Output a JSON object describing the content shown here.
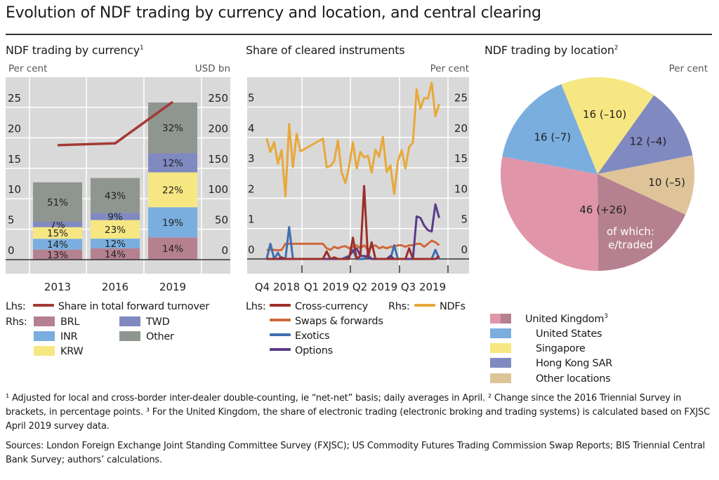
{
  "title": "Evolution of NDF trading by currency and location, and central clearing",
  "chart_data": [
    {
      "type": "bar",
      "stacked": true,
      "title": "NDF trading by currency",
      "title_footnote": "1",
      "ylabel_left": "Per cent",
      "ylabel_right": "USD bn",
      "ylim_left": [
        0,
        25
      ],
      "ylim_right": [
        0,
        250
      ],
      "yticks_left": [
        "0",
        "5",
        "10",
        "15",
        "20",
        "25"
      ],
      "yticks_right": [
        "0",
        "50",
        "100",
        "150",
        "200",
        "250"
      ],
      "grid": true,
      "categories": [
        "2013",
        "2016",
        "2019"
      ],
      "totals_usd_bn": [
        127,
        134,
        258
      ],
      "series": [
        {
          "name": "BRL",
          "axis": "right",
          "color": "#b5808f",
          "shares_pct": [
            13,
            14,
            14
          ],
          "labels": [
            "13%",
            "14%",
            "14%"
          ]
        },
        {
          "name": "INR",
          "axis": "right",
          "color": "#7aaedf",
          "shares_pct": [
            14,
            12,
            19
          ],
          "labels": [
            "14%",
            "12%",
            "19%"
          ]
        },
        {
          "name": "KRW",
          "axis": "right",
          "color": "#f7e783",
          "shares_pct": [
            15,
            23,
            22
          ],
          "labels": [
            "15%",
            "23%",
            "22%"
          ]
        },
        {
          "name": "TWD",
          "axis": "right",
          "color": "#8089c0",
          "shares_pct": [
            7,
            9,
            12
          ],
          "labels": [
            "7%",
            "9%",
            "12%"
          ]
        },
        {
          "name": "Other",
          "axis": "right",
          "color": "#8f958f",
          "shares_pct": [
            51,
            43,
            32
          ],
          "labels": [
            "51%",
            "43%",
            "32%"
          ]
        }
      ],
      "line": {
        "name": "Share in total forward turnover",
        "axis": "left",
        "color": "#a33a36",
        "values": [
          18.8,
          19.1,
          25.9
        ]
      },
      "legend": {
        "lhs_prefix": "Lhs:",
        "rhs_prefix": "Rhs:"
      }
    },
    {
      "type": "line",
      "title": "Share of cleared instruments",
      "ylabel_right": "Per cent",
      "ylim_left": [
        -0.5,
        6
      ],
      "ylim_right": [
        -2.5,
        30
      ],
      "yticks_left": [
        "0",
        "1",
        "2",
        "3",
        "4",
        "5"
      ],
      "yticks_right": [
        "0",
        "5",
        "10",
        "15",
        "20",
        "25"
      ],
      "grid": true,
      "xticks": [
        "Q4 2018",
        "Q1 2019",
        "Q2 2019",
        "Q3 2019"
      ],
      "x": [
        "2018-10-26",
        "2018-11-02",
        "2018-11-09",
        "2018-11-16",
        "2018-11-23",
        "2018-11-30",
        "2018-12-07",
        "2018-12-14",
        "2018-12-21",
        "2018-12-28",
        "2019-02-08",
        "2019-02-15",
        "2019-02-22",
        "2019-03-01",
        "2019-03-08",
        "2019-03-15",
        "2019-03-22",
        "2019-03-29",
        "2019-04-05",
        "2019-04-12",
        "2019-04-19",
        "2019-04-26",
        "2019-05-03",
        "2019-05-10",
        "2019-05-17",
        "2019-05-24",
        "2019-05-31",
        "2019-06-07",
        "2019-06-14",
        "2019-06-21",
        "2019-06-28",
        "2019-07-05",
        "2019-07-12",
        "2019-07-19",
        "2019-07-26",
        "2019-08-02",
        "2019-08-09",
        "2019-08-16",
        "2019-08-23",
        "2019-08-30",
        "2019-09-06",
        "2019-09-13"
      ],
      "series": [
        {
          "name": "Cross-currency",
          "axis": "left",
          "color": "#9c2f2a",
          "values": [
            0,
            0,
            0,
            0,
            0.05,
            0,
            0,
            0,
            0,
            0,
            0,
            0.25,
            0,
            0.05,
            0,
            0,
            0,
            0,
            0.7,
            0,
            0.1,
            2.4,
            0.05,
            0.55,
            0,
            0,
            0,
            0,
            0,
            0,
            0,
            0,
            0,
            0.35,
            0,
            0,
            0,
            0,
            0,
            0,
            0,
            0.1
          ]
        },
        {
          "name": "Swaps & forwards",
          "axis": "left",
          "color": "#d0683a",
          "values": [
            0.3,
            0.3,
            0.3,
            0.28,
            0.3,
            0.5,
            0.5,
            0.5,
            0.5,
            0.5,
            0.5,
            0.35,
            0.3,
            0.4,
            0.35,
            0.4,
            0.42,
            0.35,
            0.4,
            0.45,
            0.35,
            0.45,
            0.3,
            0.4,
            0.45,
            0.35,
            0.4,
            0.35,
            0.4,
            0.4,
            0.45,
            0.45,
            0.4,
            0.45,
            0.45,
            0.5,
            0.5,
            0.4,
            0.5,
            0.6,
            0.55,
            0.45
          ]
        },
        {
          "name": "Exotics",
          "axis": "left",
          "color": "#3f6fb0",
          "values": [
            0,
            0.5,
            0,
            0.2,
            0,
            0,
            1.05,
            0,
            0,
            0,
            0,
            0,
            0,
            0,
            0,
            0,
            0.05,
            0.1,
            0.3,
            0,
            0,
            0,
            0.15,
            0,
            0,
            0,
            0,
            0,
            0,
            0.45,
            0,
            0,
            0,
            0,
            0,
            0,
            0,
            0,
            0,
            0,
            0.3,
            0
          ]
        },
        {
          "name": "Options",
          "axis": "left",
          "color": "#5b3a8c",
          "values": [
            0,
            0,
            0,
            0,
            0,
            0,
            0,
            0,
            0,
            0,
            0,
            0,
            0,
            0,
            0,
            0,
            0,
            0.1,
            0.25,
            0.35,
            0.1,
            0.1,
            0.05,
            0,
            0,
            0,
            0,
            0,
            0.1,
            0,
            0,
            0,
            0,
            0,
            0,
            1.4,
            1.35,
            1.1,
            0.95,
            0.9,
            1.8,
            1.35
          ]
        },
        {
          "name": "NDFs",
          "axis": "right",
          "color": "#e8a83a",
          "values": [
            19.9,
            17.6,
            19.2,
            15.7,
            17.9,
            10.3,
            22.2,
            15.1,
            20.6,
            17.7,
            19.8,
            15.1,
            15.3,
            16.1,
            19.5,
            14.2,
            12.5,
            15.3,
            19.2,
            14.9,
            17.6,
            16.7,
            17.0,
            14.2,
            18.0,
            16.8,
            20.1,
            14.3,
            15.4,
            10.7,
            16.1,
            17.9,
            14.9,
            18.4,
            19.2,
            27.9,
            24.7,
            26.5,
            26.4,
            29.0,
            23.5,
            25.5
          ]
        }
      ],
      "legend": {
        "lhs_prefix": "Lhs:",
        "rhs_prefix": "Rhs:"
      }
    },
    {
      "type": "pie",
      "title": "NDF trading by location",
      "title_footnote": "2",
      "unit": "Per cent",
      "slices": [
        {
          "name": "Singapore",
          "value": 16,
          "label": "16 (–10)",
          "color": "#f7e783"
        },
        {
          "name": "Hong Kong SAR",
          "value": 12,
          "label": "12 (–4)",
          "color": "#8089c0"
        },
        {
          "name": "Other locations",
          "value": 10,
          "label": "10 (–5)",
          "color": "#dfc49a"
        },
        {
          "name": "United Kingdom",
          "value": 46,
          "label": "46 (+26)",
          "color": "#e096a8",
          "electronic_share": 18,
          "electronic_color": "#b5808f",
          "electronic_label": "of which:\ne/traded"
        },
        {
          "name": "United States",
          "value": 16,
          "label": "16 (–7)",
          "color": "#7aaedf"
        }
      ],
      "legend_footnote_uk": "3"
    }
  ],
  "footnotes": "¹ Adjusted for local and cross-border inter-dealer double-counting, ie “net-net” basis; daily averages in April.   ² Change since the 2016 Triennial Survey in brackets, in percentage points.   ³ For the United Kingdom, the share of electronic trading (electronic broking and trading systems) is calculated based on FXJSC April 2019 survey data.",
  "sources": "Sources: London Foreign Exchange Joint Standing Committee Survey (FXJSC); US Commodity Futures Trading Commission Swap Reports; BIS Triennial Central Bank Survey; authors’ calculations."
}
